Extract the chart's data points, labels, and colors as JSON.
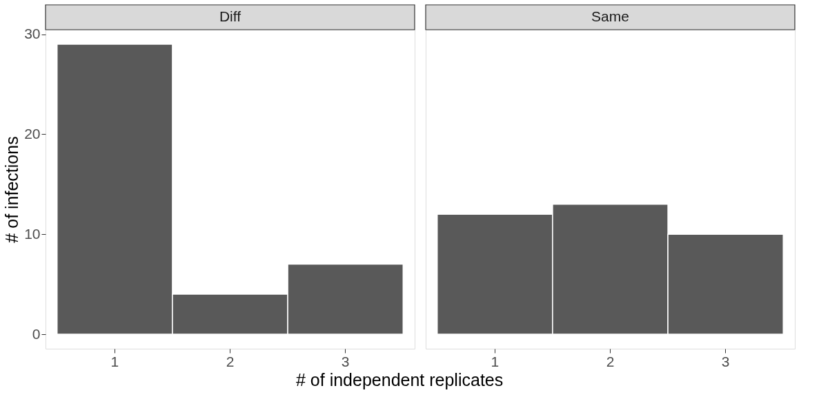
{
  "chart_data": [
    {
      "type": "bar",
      "title": "Diff",
      "xlabel": "# of independent replicates",
      "ylabel": "# of infections",
      "categories": [
        "1",
        "2",
        "3"
      ],
      "series": [
        {
          "color": "#595959",
          "values": [
            29,
            4,
            7
          ]
        }
      ],
      "ylim": [
        -1.45,
        30.45
      ],
      "yticks": [
        0,
        10,
        20,
        30
      ],
      "grid": false
    },
    {
      "type": "bar",
      "title": "Same",
      "categories": [
        "1",
        "2",
        "3"
      ],
      "series": [
        {
          "color": "#595959",
          "values": [
            12,
            13,
            10
          ]
        }
      ],
      "ylim": [
        -1.45,
        30.45
      ],
      "yticks": [
        0,
        10,
        20,
        30
      ],
      "grid": false,
      "tick_labels": "x"
    }
  ]
}
